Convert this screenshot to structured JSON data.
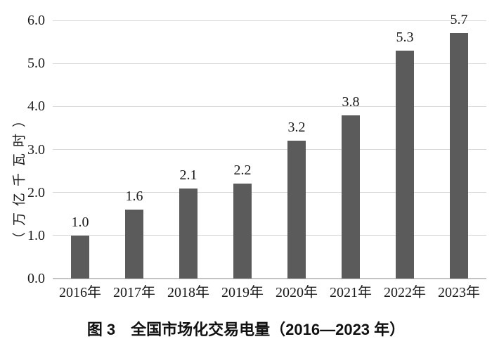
{
  "page": {
    "background_color": "#ffffff",
    "text_color": "#1a1a1a"
  },
  "chart_data": {
    "type": "bar",
    "title": "图 3　全国市场化交易电量（2016—2023 年）",
    "ylabel": "（万亿千瓦时）",
    "xlabel": "",
    "categories": [
      "2016年",
      "2017年",
      "2018年",
      "2019年",
      "2020年",
      "2021年",
      "2022年",
      "2023年"
    ],
    "values": [
      1.0,
      1.6,
      2.1,
      2.2,
      3.2,
      3.8,
      5.3,
      5.7
    ],
    "value_labels": [
      "1.0",
      "1.6",
      "2.1",
      "2.2",
      "3.2",
      "3.8",
      "5.3",
      "5.7"
    ],
    "ylim": [
      0,
      6
    ],
    "ytick_labels": [
      "0.0",
      "1.0",
      "2.0",
      "3.0",
      "4.0",
      "5.0",
      "6.0"
    ],
    "grid": true,
    "legend": "none",
    "bar_color": "#5b5b5b",
    "gridline_color": "#d9d9d9",
    "baseline_color": "#c3c3c3"
  }
}
